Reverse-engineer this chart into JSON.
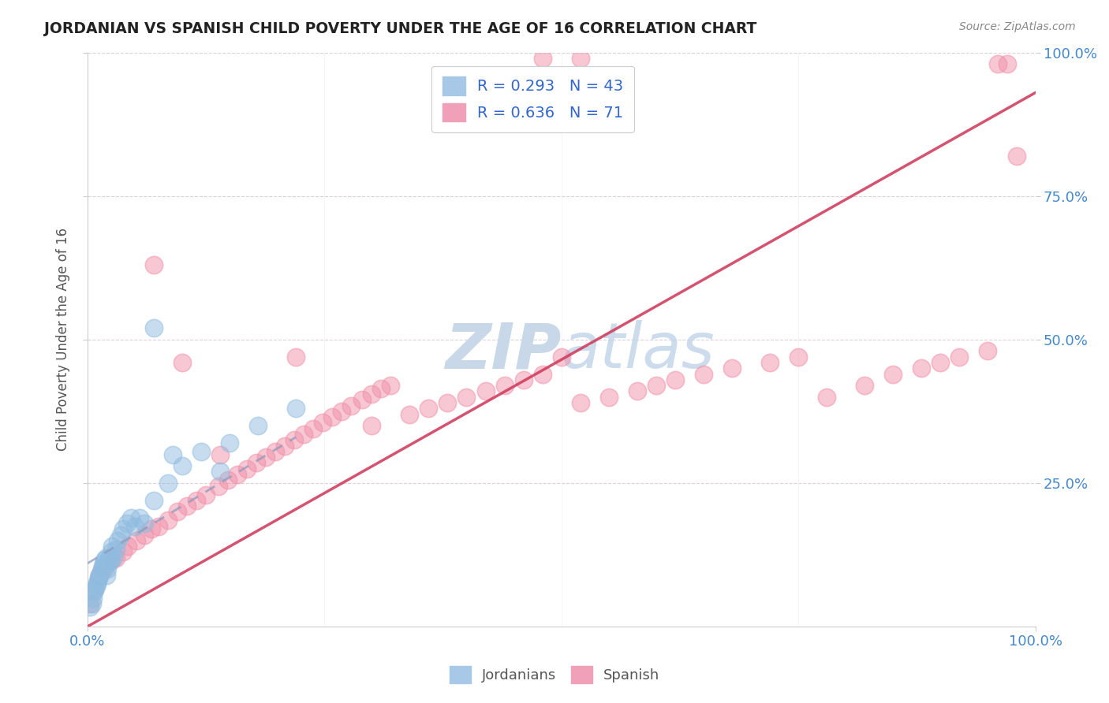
{
  "title": "JORDANIAN VS SPANISH CHILD POVERTY UNDER THE AGE OF 16 CORRELATION CHART",
  "source": "Source: ZipAtlas.com",
  "ylabel": "Child Poverty Under the Age of 16",
  "xlim": [
    0,
    1
  ],
  "ylim": [
    0,
    1
  ],
  "xtick_positions": [
    0.0,
    1.0
  ],
  "xtick_labels": [
    "0.0%",
    "100.0%"
  ],
  "ytick_positions": [
    0.25,
    0.5,
    0.75,
    1.0
  ],
  "ytick_labels": [
    "25.0%",
    "50.0%",
    "75.0%",
    "100.0%"
  ],
  "legend_r1": "R = 0.293",
  "legend_n1": "N = 43",
  "legend_r2": "R = 0.636",
  "legend_n2": "N = 71",
  "jordanian_color": "#90bce0",
  "spanish_color": "#f090a8",
  "jordanian_line_color": "#4060b0",
  "spanish_line_color": "#d04060",
  "background_color": "#ffffff",
  "watermark_color": "#c8d8e8",
  "grid_color": "#e0d0d8",
  "title_color": "#222222",
  "tick_color": "#4488cc",
  "jordanian_x": [
    0.003,
    0.005,
    0.006,
    0.007,
    0.008,
    0.009,
    0.01,
    0.011,
    0.012,
    0.013,
    0.014,
    0.015,
    0.016,
    0.017,
    0.018,
    0.019,
    0.02,
    0.021,
    0.022,
    0.023,
    0.024,
    0.025,
    0.026,
    0.028,
    0.03,
    0.032,
    0.035,
    0.038,
    0.042,
    0.046,
    0.05,
    0.055,
    0.06,
    0.07,
    0.085,
    0.1,
    0.12,
    0.15,
    0.18,
    0.22,
    0.07,
    0.09,
    0.14
  ],
  "jordanian_y": [
    0.035,
    0.04,
    0.05,
    0.06,
    0.065,
    0.07,
    0.075,
    0.08,
    0.085,
    0.09,
    0.095,
    0.1,
    0.105,
    0.11,
    0.115,
    0.12,
    0.09,
    0.1,
    0.11,
    0.12,
    0.115,
    0.13,
    0.14,
    0.12,
    0.135,
    0.15,
    0.16,
    0.17,
    0.18,
    0.19,
    0.175,
    0.19,
    0.18,
    0.22,
    0.25,
    0.28,
    0.305,
    0.32,
    0.35,
    0.38,
    0.52,
    0.3,
    0.27
  ],
  "spanish_x": [
    0.003,
    0.007,
    0.013,
    0.018,
    0.025,
    0.03,
    0.038,
    0.043,
    0.052,
    0.06,
    0.068,
    0.075,
    0.085,
    0.095,
    0.105,
    0.115,
    0.125,
    0.138,
    0.148,
    0.158,
    0.168,
    0.178,
    0.188,
    0.198,
    0.208,
    0.218,
    0.228,
    0.238,
    0.248,
    0.258,
    0.268,
    0.278,
    0.29,
    0.3,
    0.31,
    0.32,
    0.34,
    0.36,
    0.38,
    0.4,
    0.42,
    0.44,
    0.46,
    0.48,
    0.5,
    0.52,
    0.55,
    0.58,
    0.6,
    0.62,
    0.65,
    0.68,
    0.72,
    0.75,
    0.78,
    0.82,
    0.85,
    0.88,
    0.9,
    0.92,
    0.95,
    0.48,
    0.52,
    0.96,
    0.97,
    0.98,
    0.07,
    0.22,
    0.3,
    0.1,
    0.14
  ],
  "spanish_y": [
    0.04,
    0.065,
    0.09,
    0.1,
    0.115,
    0.12,
    0.13,
    0.14,
    0.15,
    0.16,
    0.17,
    0.175,
    0.185,
    0.2,
    0.21,
    0.22,
    0.23,
    0.245,
    0.255,
    0.265,
    0.275,
    0.285,
    0.295,
    0.305,
    0.315,
    0.325,
    0.335,
    0.345,
    0.355,
    0.365,
    0.375,
    0.385,
    0.395,
    0.405,
    0.415,
    0.42,
    0.37,
    0.38,
    0.39,
    0.4,
    0.41,
    0.42,
    0.43,
    0.44,
    0.47,
    0.39,
    0.4,
    0.41,
    0.42,
    0.43,
    0.44,
    0.45,
    0.46,
    0.47,
    0.4,
    0.42,
    0.44,
    0.45,
    0.46,
    0.47,
    0.48,
    0.99,
    0.99,
    0.98,
    0.98,
    0.82,
    0.63,
    0.47,
    0.35,
    0.46,
    0.3
  ],
  "spanish_line_x0": 0.0,
  "spanish_line_y0": 0.0,
  "spanish_line_x1": 1.0,
  "spanish_line_y1": 0.93,
  "jordanian_line_x0": 0.0,
  "jordanian_line_y0": 0.11,
  "jordanian_line_x1": 0.22,
  "jordanian_line_y1": 0.33
}
